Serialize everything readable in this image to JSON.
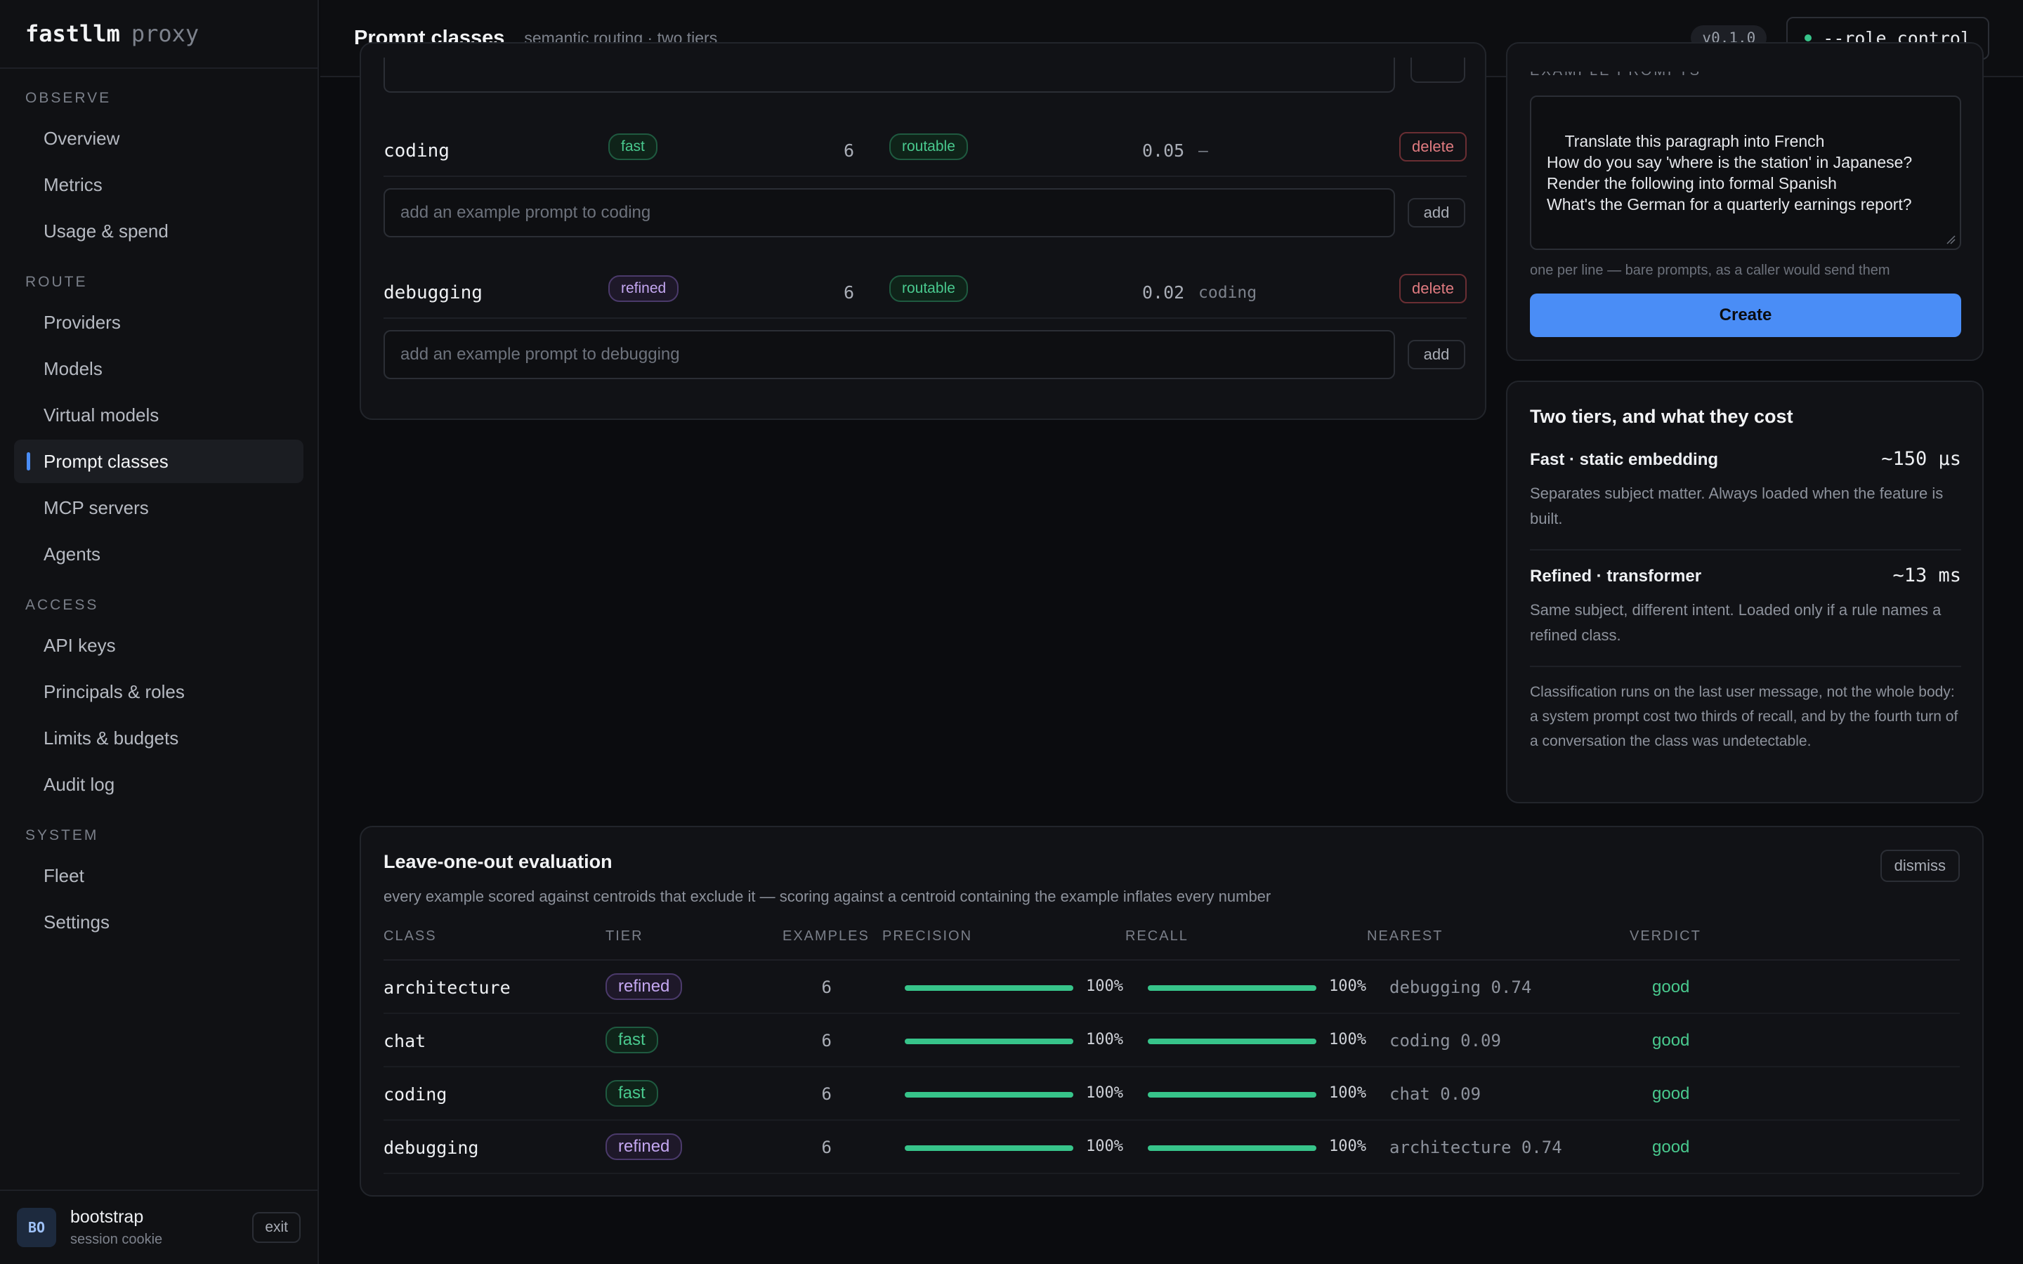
{
  "brand": {
    "name": "fastllm",
    "suffix": "proxy"
  },
  "sidebar": {
    "sections": [
      {
        "title": "OBSERVE",
        "items": [
          "Overview",
          "Metrics",
          "Usage & spend"
        ]
      },
      {
        "title": "ROUTE",
        "items": [
          "Providers",
          "Models",
          "Virtual models",
          "Prompt classes",
          "MCP servers",
          "Agents"
        ]
      },
      {
        "title": "ACCESS",
        "items": [
          "API keys",
          "Principals & roles",
          "Limits & budgets",
          "Audit log"
        ]
      },
      {
        "title": "SYSTEM",
        "items": [
          "Fleet",
          "Settings"
        ]
      }
    ],
    "active": "Prompt classes",
    "user": {
      "initials": "BO",
      "name": "bootstrap",
      "sub": "session cookie",
      "exit_label": "exit"
    }
  },
  "header": {
    "title": "Prompt classes",
    "subtitle": "semantic routing · two tiers",
    "version": "v0.1.0",
    "role": "--role control"
  },
  "classes": [
    {
      "name": "coding",
      "tier": "fast",
      "examples": "6",
      "status": "routable",
      "threshold": "0.05",
      "parent": "–",
      "delete_label": "delete",
      "add_placeholder": "add an example prompt to coding",
      "add_label": "add"
    },
    {
      "name": "debugging",
      "tier": "refined",
      "examples": "6",
      "status": "routable",
      "threshold": "0.02",
      "parent": "coding",
      "delete_label": "delete",
      "add_placeholder": "add an example prompt to debugging",
      "add_label": "add"
    }
  ],
  "create": {
    "examples_label": "EXAMPLE PROMPTS",
    "examples_text": "Translate this paragraph into French\nHow do you say 'where is the station' in Japanese?\nRender the following into formal Spanish\nWhat's the German for a quarterly earnings report?",
    "hint": "one per line — bare prompts, as a caller would send them",
    "button": "Create"
  },
  "tiers": {
    "title": "Two tiers, and what they cost",
    "items": [
      {
        "name": "Fast · static embedding",
        "cost": "~150 µs",
        "desc": "Separates subject matter. Always loaded when the feature is built."
      },
      {
        "name": "Refined · transformer",
        "cost": "~13 ms",
        "desc": "Same subject, different intent. Loaded only if a rule names a refined class."
      }
    ],
    "note": "Classification runs on the last user message, not the whole body: a system prompt cost two thirds of recall, and by the fourth turn of a conversation the class was undetectable."
  },
  "evaluation": {
    "title": "Leave-one-out evaluation",
    "subtitle": "every example scored against centroids that exclude it — scoring against a centroid containing the example inflates every number",
    "dismiss": "dismiss",
    "columns": {
      "class": "CLASS",
      "tier": "TIER",
      "examples": "EXAMPLES",
      "precision": "PRECISION",
      "recall": "RECALL",
      "nearest": "NEAREST",
      "verdict": "VERDICT"
    },
    "rows": [
      {
        "class": "architecture",
        "tier": "refined",
        "examples": "6",
        "precision": 1.0,
        "precision_label": "100%",
        "recall": 1.0,
        "recall_label": "100%",
        "nearest": "debugging 0.74",
        "verdict": "good"
      },
      {
        "class": "chat",
        "tier": "fast",
        "examples": "6",
        "precision": 1.0,
        "precision_label": "100%",
        "recall": 1.0,
        "recall_label": "100%",
        "nearest": "coding 0.09",
        "verdict": "good"
      },
      {
        "class": "coding",
        "tier": "fast",
        "examples": "6",
        "precision": 1.0,
        "precision_label": "100%",
        "recall": 1.0,
        "recall_label": "100%",
        "nearest": "chat 0.09",
        "verdict": "good"
      },
      {
        "class": "debugging",
        "tier": "refined",
        "examples": "6",
        "precision": 1.0,
        "precision_label": "100%",
        "recall": 1.0,
        "recall_label": "100%",
        "nearest": "architecture 0.74",
        "verdict": "good"
      }
    ]
  },
  "colors": {
    "accent": "#4a8df6",
    "good": "#49c98e",
    "danger": "#e07b80",
    "refined": "#c4a7f1"
  }
}
